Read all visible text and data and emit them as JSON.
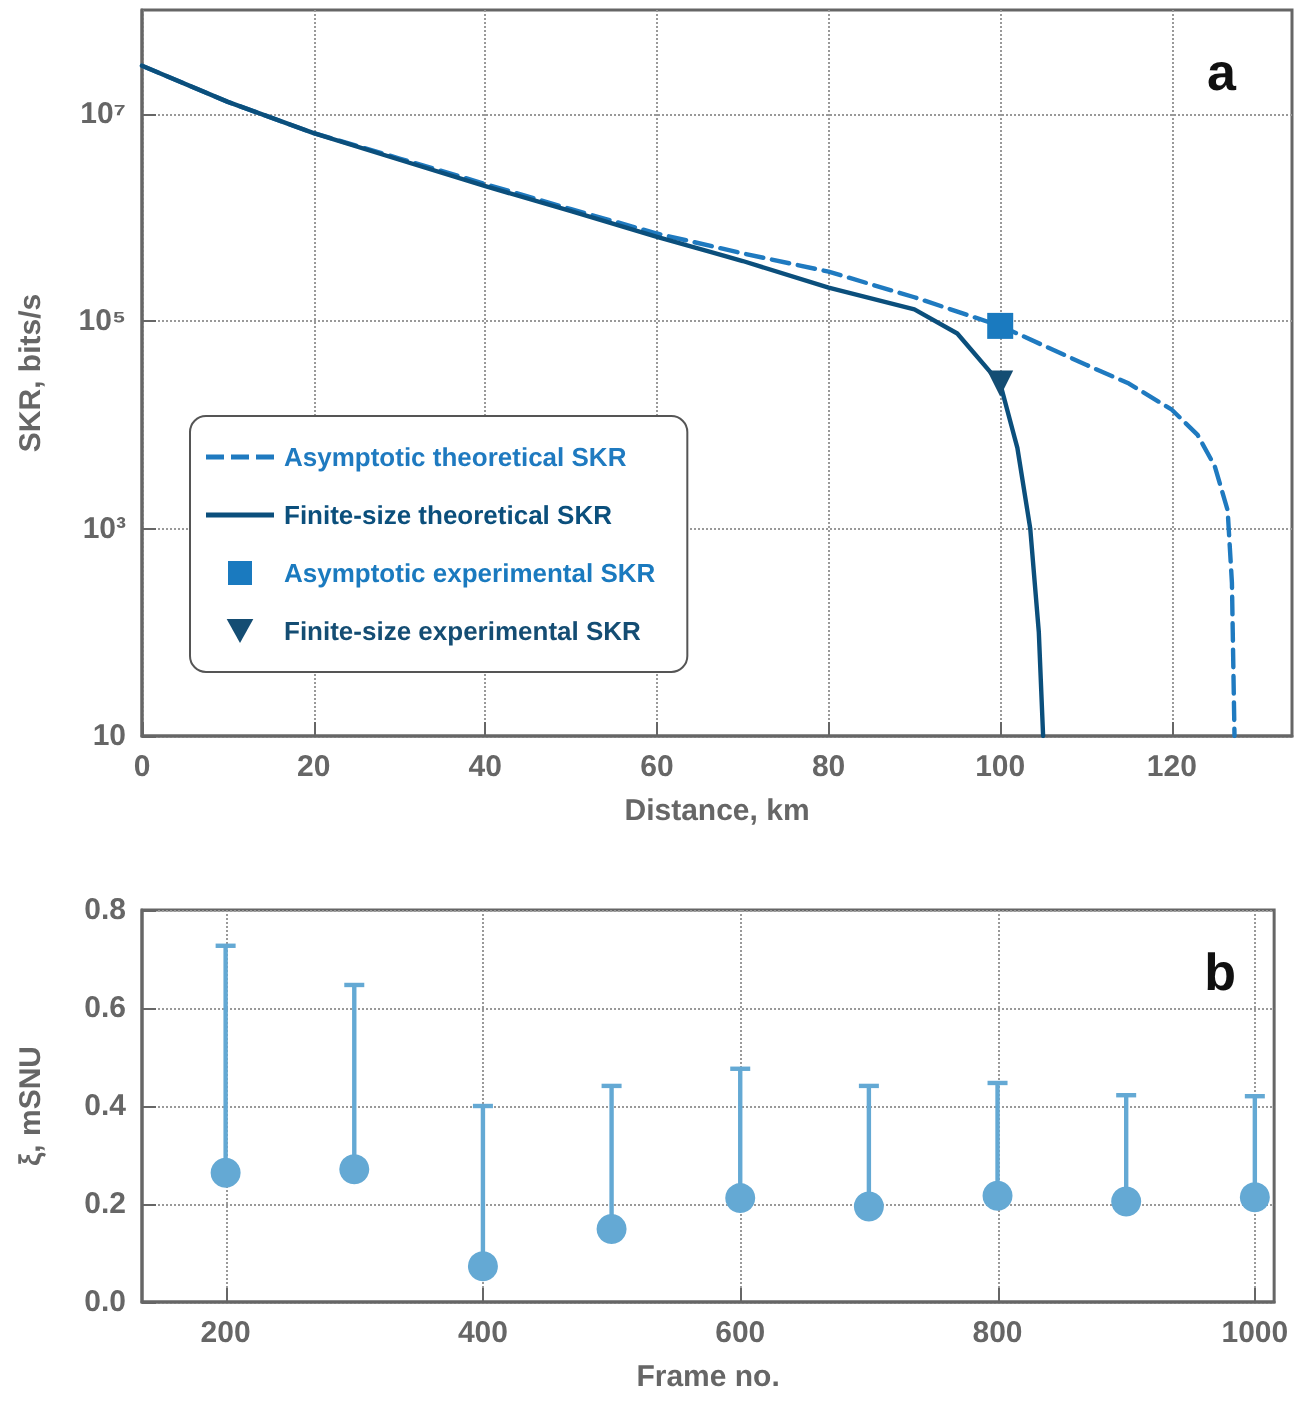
{
  "chart_data": [
    {
      "type": "line",
      "xlabel": "Distance, km",
      "ylabel": "SKR, bits/s",
      "log": "y",
      "xlim": [
        0,
        134
      ],
      "xticks": [
        0,
        20,
        40,
        60,
        80,
        100,
        120
      ],
      "ylim": [
        10,
        100000000
      ],
      "yticks": [
        10,
        {
          "value": 1000,
          "label": "10³"
        },
        {
          "value": 100000,
          "label": "10⁵"
        },
        {
          "value": 10000000,
          "label": "10⁷"
        }
      ],
      "grid": true,
      "legend": "bottom left",
      "annotations": [
        "a"
      ],
      "series": [
        {
          "name": "Asymptotic theoretical SKR",
          "line_style": "dashed",
          "marker": "none",
          "color": "#1f7ac0",
          "x": [
            0,
            10,
            20,
            30,
            40,
            50,
            60,
            70,
            80,
            90,
            100,
            110,
            115,
            120,
            123,
            125,
            126.5,
            127,
            127.3
          ],
          "values": [
            29000000,
            13000000,
            6500000,
            3700000,
            2100000,
            1200000,
            700000,
            450000,
            300000,
            170000,
            90000,
            38000,
            25000,
            14000,
            8000,
            4000,
            1500,
            300,
            10
          ]
        },
        {
          "name": "Finite-size theoretical SKR",
          "line_style": "solid",
          "marker": "none",
          "color": "#0b4f7c",
          "x": [
            0,
            10,
            20,
            30,
            40,
            50,
            60,
            70,
            80,
            90,
            95,
            100,
            102,
            103.5,
            104.5,
            105
          ],
          "values": [
            29000000,
            13000000,
            6500000,
            3600000,
            2000000,
            1150000,
            650000,
            380000,
            210000,
            130000,
            76000,
            25000,
            6000,
            1000,
            100,
            10
          ]
        },
        {
          "name": "Asymptotic experimental SKR",
          "type": "scatter",
          "marker": "square",
          "color": "#1a7abf",
          "x": [
            100
          ],
          "values": [
            90000
          ]
        },
        {
          "name": "Finite-size experimental SKR",
          "type": "scatter",
          "marker": "triangle",
          "color": "#144d73",
          "x": [
            100
          ],
          "values": [
            25000
          ]
        }
      ]
    },
    {
      "type": "scatter",
      "xlabel": "Frame no.",
      "ylabel": "ξ, mSNU",
      "xlim": [
        135,
        1015
      ],
      "xticks": [
        200,
        400,
        600,
        800,
        1000
      ],
      "ylim": [
        0,
        0.8
      ],
      "yticks": [
        {
          "value": 0,
          "label": "0.0"
        },
        {
          "value": 0.2,
          "label": "0.2"
        },
        {
          "value": 0.4,
          "label": "0.4"
        },
        {
          "value": 0.6,
          "label": "0.6"
        },
        {
          "value": 0.8,
          "label": "0.8"
        }
      ],
      "grid": true,
      "annotations": [
        "b"
      ],
      "series": [
        {
          "marker": "circle",
          "color": "#64a9d4",
          "x": [
            200,
            300,
            400,
            500,
            600,
            700,
            800,
            900,
            1000
          ],
          "values": [
            0.264,
            0.271,
            0.073,
            0.149,
            0.212,
            0.195,
            0.217,
            0.205,
            0.214
          ],
          "errors": [
            [
              0.264,
              0.727
            ],
            [
              0.271,
              0.647
            ],
            [
              0.073,
              0.4
            ],
            [
              0.149,
              0.441
            ],
            [
              0.212,
              0.476
            ],
            [
              0.195,
              0.441
            ],
            [
              0.217,
              0.447
            ],
            [
              0.205,
              0.422
            ],
            [
              0.214,
              0.42
            ]
          ]
        }
      ]
    }
  ]
}
